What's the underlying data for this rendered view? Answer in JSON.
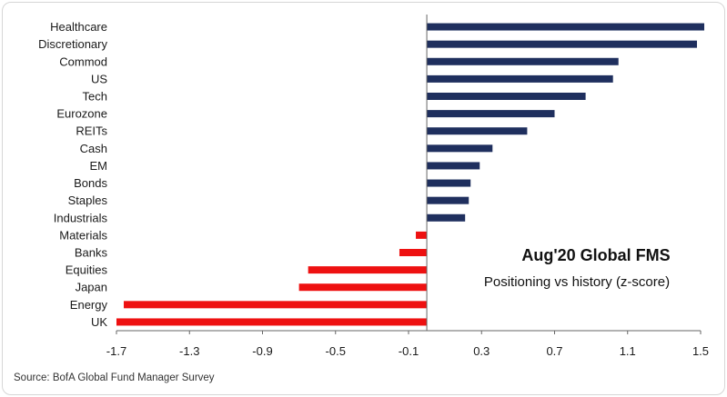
{
  "chart_data": {
    "type": "bar",
    "orientation": "horizontal",
    "categories": [
      "Healthcare",
      "Discretionary",
      "Commod",
      "US",
      "Tech",
      "Eurozone",
      "REITs",
      "Cash",
      "EM",
      "Bonds",
      "Staples",
      "Industrials",
      "Materials",
      "Banks",
      "Equities",
      "Japan",
      "Energy",
      "UK"
    ],
    "values": [
      1.52,
      1.48,
      1.05,
      1.02,
      0.87,
      0.7,
      0.55,
      0.36,
      0.29,
      0.24,
      0.23,
      0.21,
      -0.06,
      -0.15,
      -0.65,
      -0.7,
      -1.66,
      -1.7
    ],
    "xlim": [
      -1.7,
      1.5
    ],
    "xticks": [
      "-1.7",
      "-1.3",
      "-0.9",
      "-0.5",
      "-0.1",
      "0.3",
      "0.7",
      "1.1",
      "1.5"
    ],
    "annotation_title": "Aug'20 Global FMS",
    "annotation_subtitle": "Positioning vs history (z-score)",
    "grid": false,
    "colors": {
      "positive": "#1f2f5e",
      "negative": "#ee1111"
    }
  },
  "source": "Source: BofA Global Fund Manager Survey"
}
